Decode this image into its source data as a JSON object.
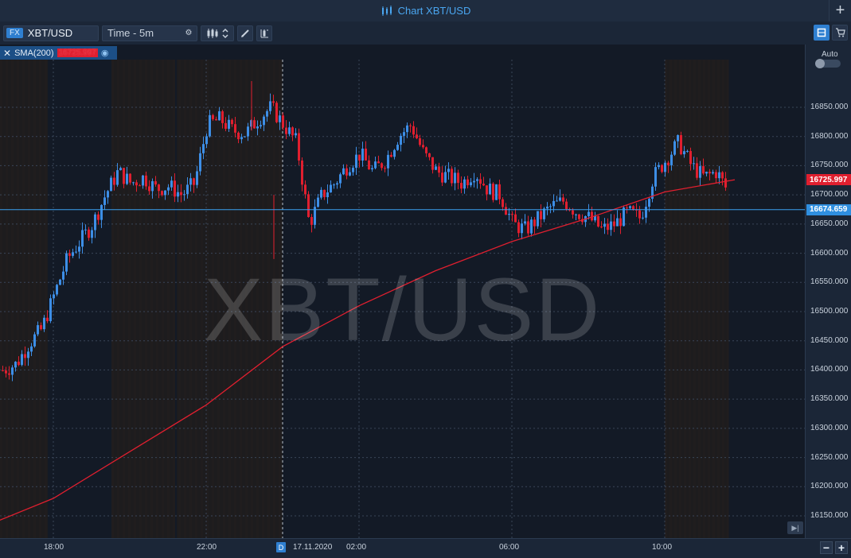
{
  "window": {
    "title": "Chart XBT/USD",
    "title_icon": "candlestick-icon",
    "add_button": "+"
  },
  "toolbar": {
    "symbol_badge": "FX",
    "symbol": "XBT/USD",
    "timeframe": "Time - 5m",
    "timeframe_icon": "gear-icon",
    "chart_type_icon": "candlestick-icon",
    "draw_icon": "pencil-icon",
    "indicators_icon": "indicator-icon",
    "layout_icon": "layout-icon",
    "trade_icon": "cart-icon"
  },
  "indicator": {
    "name": "SMA(200)",
    "value": "16725.997",
    "close_icon": "close-icon",
    "visibility_icon": "eye-icon"
  },
  "price_axis": {
    "auto_label": "Auto",
    "ticks": [
      "16850.000",
      "16800.000",
      "16750.000",
      "16700.000",
      "16650.000",
      "16600.000",
      "16550.000",
      "16500.000",
      "16450.000",
      "16400.000",
      "16350.000",
      "16300.000",
      "16250.000",
      "16200.000",
      "16150.000"
    ],
    "sma_tag": "16725.997",
    "price_tag": "16674.659"
  },
  "time_axis": {
    "ticks": [
      "18:00",
      "22:00",
      "17.11.2020",
      "02:00",
      "06:00",
      "10:00"
    ],
    "day_marker": "D",
    "zoom_out": "−",
    "zoom_in": "+"
  },
  "watermark": "XBT/USD",
  "colors": {
    "up": "#3d8ee6",
    "down": "#e01f2f",
    "sma": "#e01f2f",
    "price_line": "#3aa0ef",
    "background": "#131a26",
    "panel": "#1b2637"
  },
  "chart_data": {
    "type": "candlestick",
    "symbol": "XBT/USD",
    "interval": "5m",
    "ylim": [
      16120,
      16900
    ],
    "last_price": 16674.659,
    "sma_last": 16725.997,
    "x_ticks": [
      "18:00",
      "22:00",
      "17.11.2020",
      "02:00",
      "06:00",
      "10:00"
    ],
    "close_path": [
      [
        "16:30",
        16395
      ],
      [
        "17:00",
        16410
      ],
      [
        "17:20",
        16445
      ],
      [
        "17:40",
        16470
      ],
      [
        "18:00",
        16530
      ],
      [
        "18:20",
        16590
      ],
      [
        "18:40",
        16620
      ],
      [
        "19:00",
        16650
      ],
      [
        "19:20",
        16700
      ],
      [
        "19:40",
        16740
      ],
      [
        "20:00",
        16720
      ],
      [
        "20:20",
        16730
      ],
      [
        "20:40",
        16710
      ],
      [
        "21:00",
        16715
      ],
      [
        "21:20",
        16700
      ],
      [
        "21:40",
        16720
      ],
      [
        "22:00",
        16820
      ],
      [
        "22:20",
        16830
      ],
      [
        "22:40",
        16810
      ],
      [
        "23:00",
        16805
      ],
      [
        "23:20",
        16830
      ],
      [
        "23:40",
        16850
      ],
      [
        "00:00",
        16820
      ],
      [
        "00:20",
        16790
      ],
      [
        "00:40",
        16650
      ],
      [
        "01:00",
        16700
      ],
      [
        "01:20",
        16720
      ],
      [
        "01:40",
        16750
      ],
      [
        "02:00",
        16770
      ],
      [
        "02:20",
        16740
      ],
      [
        "02:40",
        16760
      ],
      [
        "03:00",
        16800
      ],
      [
        "03:20",
        16820
      ],
      [
        "03:40",
        16770
      ],
      [
        "04:00",
        16740
      ],
      [
        "04:20",
        16730
      ],
      [
        "04:40",
        16720
      ],
      [
        "05:00",
        16740
      ],
      [
        "05:20",
        16710
      ],
      [
        "05:40",
        16700
      ],
      [
        "06:00",
        16650
      ],
      [
        "06:20",
        16640
      ],
      [
        "06:40",
        16660
      ],
      [
        "07:00",
        16680
      ],
      [
        "07:20",
        16690
      ],
      [
        "07:40",
        16670
      ],
      [
        "08:00",
        16660
      ],
      [
        "08:20",
        16640
      ],
      [
        "08:40",
        16650
      ],
      [
        "09:00",
        16670
      ],
      [
        "09:20",
        16660
      ],
      [
        "09:40",
        16730
      ],
      [
        "10:00",
        16760
      ],
      [
        "10:20",
        16790
      ],
      [
        "10:40",
        16750
      ],
      [
        "11:00",
        16730
      ],
      [
        "11:20",
        16740
      ],
      [
        "11:40",
        16700
      ],
      [
        "11:50",
        16675
      ]
    ],
    "sma_path": [
      [
        "16:30",
        16140
      ],
      [
        "18:00",
        16180
      ],
      [
        "20:00",
        16260
      ],
      [
        "22:00",
        16340
      ],
      [
        "00:00",
        16440
      ],
      [
        "02:00",
        16510
      ],
      [
        "04:00",
        16570
      ],
      [
        "06:00",
        16620
      ],
      [
        "08:00",
        16660
      ],
      [
        "10:00",
        16705
      ],
      [
        "11:50",
        16726
      ]
    ]
  }
}
